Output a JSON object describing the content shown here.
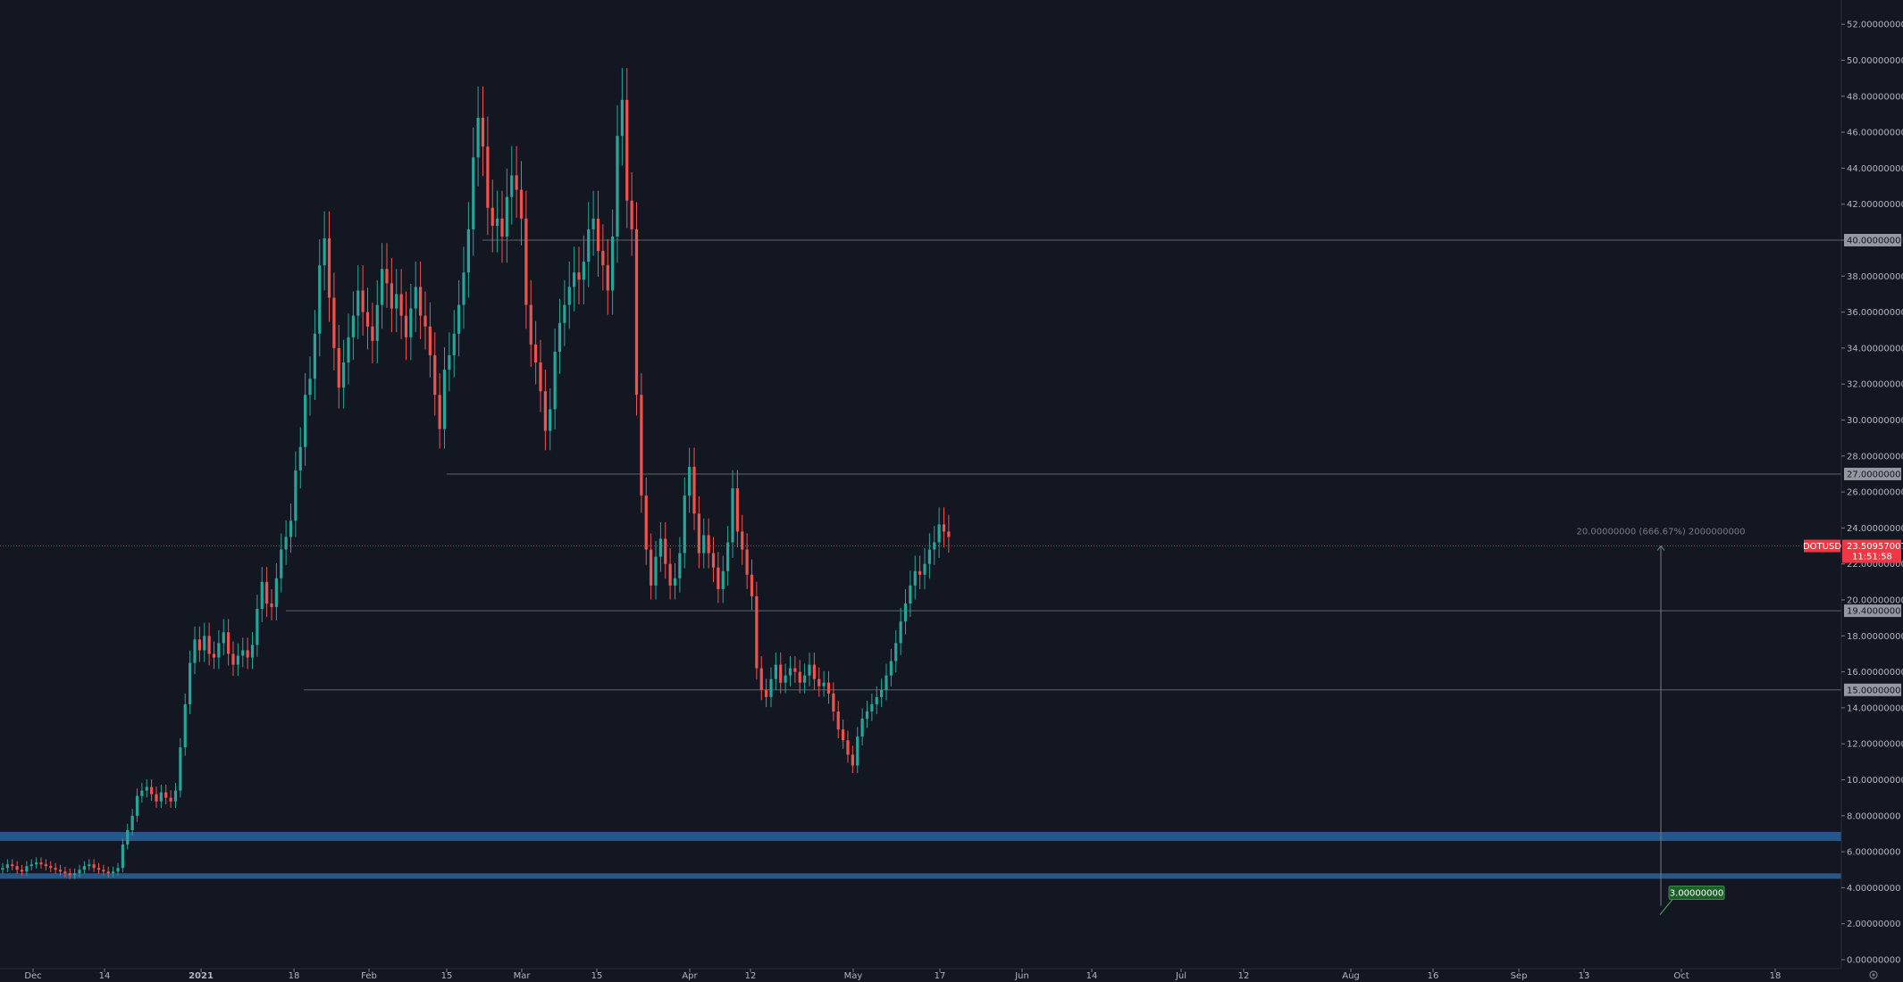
{
  "chart_data": {
    "type": "candlestick",
    "symbol": "DOTUSD",
    "x_ticks": [
      "Dec",
      "14",
      "2021",
      "18",
      "Feb",
      "15",
      "Mar",
      "15",
      "Apr",
      "12",
      "May",
      "17",
      "Jun",
      "14",
      "Jul",
      "12",
      "Aug",
      "16",
      "Sep",
      "13",
      "Oct",
      "18"
    ],
    "y_ticks": [
      "0.00000000",
      "2.00000000",
      "4.00000000",
      "6.00000000",
      "8.00000000",
      "10.00000000",
      "12.00000000",
      "14.00000000",
      "16.00000000",
      "18.00000000",
      "20.00000000",
      "22.00000000",
      "24.00000000",
      "26.00000000",
      "28.00000000",
      "30.00000000",
      "32.00000000",
      "34.00000000",
      "36.00000000",
      "38.00000000",
      "40.00000000",
      "42.00000000",
      "44.00000000",
      "46.00000000",
      "48.00000000",
      "50.00000000",
      "52.00000000"
    ],
    "ylim": [
      0,
      53
    ],
    "last_price": "23.50957007",
    "countdown": "11:51:58",
    "horizontal_levels": [
      {
        "value": 40,
        "label": "40.00000000"
      },
      {
        "value": 27,
        "label": "27.00000000"
      },
      {
        "value": 19.4,
        "label": "19.40000000"
      },
      {
        "value": 15,
        "label": "15.00000000"
      }
    ],
    "support_zones": [
      {
        "from": 6.6,
        "to": 7.1
      },
      {
        "from": 4.5,
        "to": 4.8
      }
    ],
    "measure": {
      "label": "20.00000000 (666.67%) 2000000000",
      "from": 3.0,
      "to": 23.0
    },
    "target_badge": "3.00000000",
    "closes": [
      5.1,
      5.3,
      5.2,
      5.0,
      4.9,
      5.2,
      5.3,
      5.4,
      5.3,
      5.2,
      5.1,
      5.0,
      4.9,
      4.8,
      4.7,
      4.8,
      5.0,
      5.2,
      5.3,
      5.1,
      5.0,
      4.9,
      4.8,
      4.9,
      5.1,
      6.4,
      7.2,
      8.0,
      9.1,
      9.4,
      9.6,
      9.2,
      8.8,
      9.3,
      9.0,
      8.8,
      9.4,
      11.8,
      14.2,
      16.5,
      17.8,
      17.2,
      18.0,
      17.0,
      16.8,
      17.6,
      18.2,
      17.0,
      16.4,
      16.9,
      17.2,
      16.8,
      17.5,
      19.5,
      21.0,
      19.8,
      19.6,
      21.2,
      22.8,
      23.5,
      24.4,
      27.2,
      28.5,
      31.4,
      32.3,
      34.8,
      38.6,
      40.1,
      36.8,
      34.0,
      31.8,
      33.2,
      34.6,
      35.8,
      37.2,
      36.0,
      35.2,
      34.4,
      36.4,
      38.4,
      37.6,
      36.2,
      37.0,
      35.8,
      34.6,
      36.2,
      37.4,
      35.8,
      35.2,
      33.6,
      31.4,
      29.5,
      32.8,
      33.6,
      34.8,
      36.4,
      38.2,
      40.6,
      44.6,
      46.8,
      45.2,
      41.8,
      40.8,
      41.2,
      40.2,
      42.4,
      43.6,
      42.8,
      41.2,
      36.4,
      34.2,
      33.2,
      31.6,
      29.4,
      30.6,
      33.8,
      35.4,
      36.4,
      37.4,
      38.2,
      37.8,
      38.8,
      40.6,
      41.2,
      39.4,
      38.6,
      37.2,
      40.2,
      45.8,
      47.8,
      42.2,
      40.6,
      31.4,
      25.8,
      22.8,
      20.8,
      22.4,
      23.4,
      22.0,
      20.8,
      21.2,
      22.6,
      25.8,
      27.4,
      24.8,
      22.6,
      23.6,
      22.6,
      21.8,
      20.6,
      21.6,
      23.2,
      26.2,
      23.8,
      22.8,
      21.4,
      20.2,
      16.2,
      15.0,
      14.6,
      15.6,
      16.4,
      15.4,
      15.8,
      16.2,
      16.0,
      15.4,
      15.8,
      16.4,
      15.6,
      15.2,
      15.4,
      14.8,
      13.8,
      12.8,
      12.2,
      11.4,
      10.8,
      12.4,
      13.4,
      13.8,
      14.2,
      14.6,
      15.0,
      15.8,
      16.6,
      17.6,
      18.8,
      19.8,
      20.8,
      21.6,
      21.4,
      22.0,
      22.8,
      23.2,
      24.2,
      23.8,
      23.5
    ]
  }
}
